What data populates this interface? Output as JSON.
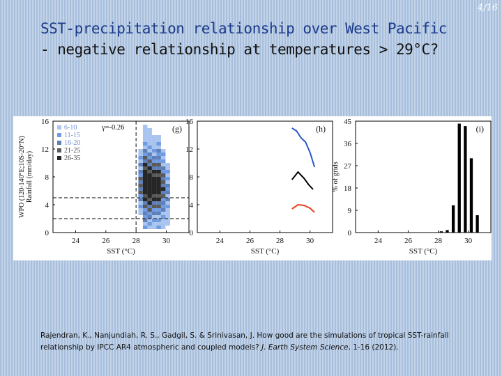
{
  "slide_number": "4/16",
  "title": {
    "line1": "SST-precipitation relationship over West Pacific",
    "line2": "- negative relationship at temperatures > 29°C?"
  },
  "reference": {
    "authors_title": "Rajendran, K., Nanjundiah, R. S., Gadgil, S. & Srinivasan, J. How good are the simulations of tropical SST-rainfall relationship by IPCC AR4 atmospheric and coupled models?",
    "journal": "J. Earth System Science",
    "pages_year": ", 1-16 (2012)."
  },
  "colors": {
    "red": "#e8401c",
    "blue": "#2a56c6",
    "black": "#000000"
  },
  "chart_data": [
    {
      "type": "heatmap",
      "panel_label": "(g)",
      "annotation": "γ=-0.26",
      "ylabel": "WPO (120-140°E;10S-20°N)\nRainfall (mm/day)",
      "xlabel": "SST (°C)",
      "x_ticks": [
        "24",
        "26",
        "28",
        "30"
      ],
      "y_ticks": [
        "0",
        "4",
        "8",
        "12",
        "16"
      ],
      "xlim": [
        22.5,
        31.5
      ],
      "ylim": [
        0,
        16
      ],
      "legend": [
        "6-10",
        "11-15",
        "16-20",
        "21-25",
        "26-35"
      ],
      "dashed_lines": {
        "vertical_x": 28,
        "horizontal_y": [
          2,
          5
        ]
      },
      "columns": [
        {
          "x": 28.3,
          "y_range": [
            2.5,
            12
          ]
        },
        {
          "x": 28.6,
          "y_range": [
            0.5,
            15.5
          ]
        },
        {
          "x": 28.9,
          "y_range": [
            0.5,
            15
          ]
        },
        {
          "x": 29.2,
          "y_range": [
            0.5,
            14
          ]
        },
        {
          "x": 29.5,
          "y_range": [
            0.5,
            14
          ]
        },
        {
          "x": 29.8,
          "y_range": [
            0.5,
            12
          ]
        },
        {
          "x": 30.1,
          "y_range": [
            1,
            10
          ]
        }
      ]
    },
    {
      "type": "line",
      "panel_label": "(h)",
      "xlabel": "SST (°C)",
      "x_ticks": [
        "24",
        "26",
        "28",
        "30"
      ],
      "y_ticks": [
        "0",
        "4",
        "8",
        "12",
        "16"
      ],
      "xlim": [
        22.5,
        31.5
      ],
      "ylim": [
        0,
        16
      ],
      "series": [
        {
          "color": "#2a56c6",
          "x": [
            28.8,
            29.1,
            29.4,
            29.7,
            30.0,
            30.3
          ],
          "y": [
            15.0,
            14.6,
            13.6,
            13.0,
            11.5,
            9.4
          ]
        },
        {
          "color": "#000000",
          "x": [
            28.8,
            29.2,
            29.6,
            29.9,
            30.2
          ],
          "y": [
            7.6,
            8.7,
            7.8,
            6.9,
            6.2
          ]
        },
        {
          "color": "#e8401c",
          "x": [
            28.8,
            29.2,
            29.6,
            30.0,
            30.3
          ],
          "y": [
            3.4,
            4.0,
            3.9,
            3.5,
            2.9
          ]
        }
      ]
    },
    {
      "type": "bar",
      "panel_label": "(i)",
      "ylabel": "% of grids",
      "xlabel": "SST (°C)",
      "x_ticks": [
        "24",
        "26",
        "28",
        "30"
      ],
      "y_ticks": [
        "0",
        "9",
        "18",
        "27",
        "36",
        "45"
      ],
      "xlim": [
        22.5,
        31.5
      ],
      "ylim": [
        0,
        45
      ],
      "categories": [
        28.2,
        28.6,
        29.0,
        29.4,
        29.8,
        30.2,
        30.6
      ],
      "values": [
        0.5,
        1,
        11,
        44,
        43,
        30,
        7
      ]
    }
  ]
}
